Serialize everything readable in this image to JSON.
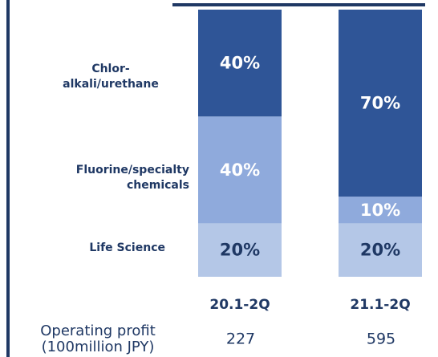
{
  "chart_data": {
    "type": "bar",
    "stacked": true,
    "categories": [
      "20.1-2Q",
      "21.1-2Q"
    ],
    "ylim": [
      0,
      100
    ],
    "series": [
      {
        "name": "Life Science",
        "color": "#b4c7e7",
        "values": [
          20,
          20
        ],
        "value_labels": [
          "20%",
          "20%"
        ]
      },
      {
        "name": "Fluorine/specialty chemicals",
        "color": "#8faadc",
        "values": [
          40,
          10
        ],
        "value_labels": [
          "40%",
          "10%"
        ]
      },
      {
        "name": "Chlor-alkali/urethane",
        "color": "#2f5597",
        "values": [
          40,
          70
        ],
        "value_labels": [
          "40%",
          "70%"
        ]
      }
    ]
  },
  "operating_profit": {
    "label_lines": [
      "Operating profit",
      "(100million JPY)"
    ],
    "values": [
      227,
      595
    ]
  }
}
